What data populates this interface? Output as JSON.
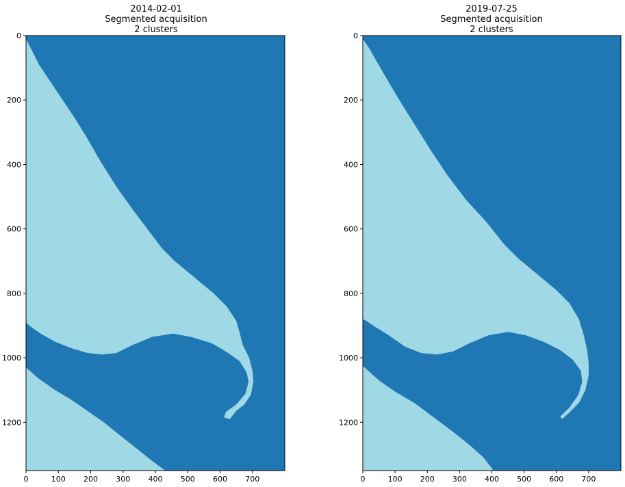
{
  "colors": {
    "cluster_0": "#1f77b4",
    "cluster_1": "#9fd9e6",
    "axis": "#000000",
    "background": "#ffffff"
  },
  "chart_data": [
    {
      "type": "heatmap",
      "title_lines": [
        "2014-02-01",
        "Segmented acquisition",
        "2 clusters"
      ],
      "xlim": [
        0,
        800
      ],
      "ylim": [
        1350,
        0
      ],
      "x_ticks": [
        0,
        100,
        200,
        300,
        400,
        500,
        600,
        700
      ],
      "y_ticks": [
        0,
        200,
        400,
        600,
        800,
        1000,
        1200
      ],
      "legend": "none",
      "grid": false,
      "clusters": 2,
      "regions": [
        {
          "cluster": 1,
          "shape": "upper-left land",
          "outline": [
            [
              0,
              10
            ],
            [
              15,
              40
            ],
            [
              40,
              90
            ],
            [
              90,
              165
            ],
            [
              150,
              255
            ],
            [
              190,
              320
            ],
            [
              230,
              390
            ],
            [
              280,
              470
            ],
            [
              330,
              540
            ],
            [
              390,
              620
            ],
            [
              420,
              660
            ],
            [
              460,
              700
            ],
            [
              520,
              750
            ],
            [
              580,
              800
            ],
            [
              620,
              840
            ],
            [
              650,
              885
            ],
            [
              660,
              920
            ],
            [
              670,
              960
            ],
            [
              690,
              1000
            ],
            [
              700,
              1040
            ],
            [
              703,
              1075
            ],
            [
              695,
              1115
            ],
            [
              675,
              1145
            ],
            [
              650,
              1165
            ],
            [
              630,
              1190
            ],
            [
              612,
              1185
            ],
            [
              618,
              1168
            ],
            [
              650,
              1145
            ],
            [
              678,
              1112
            ],
            [
              688,
              1075
            ],
            [
              682,
              1045
            ],
            [
              660,
              1010
            ],
            [
              625,
              985
            ],
            [
              575,
              955
            ],
            [
              510,
              935
            ],
            [
              455,
              925
            ],
            [
              390,
              935
            ],
            [
              330,
              960
            ],
            [
              280,
              985
            ],
            [
              235,
              990
            ],
            [
              190,
              985
            ],
            [
              140,
              970
            ],
            [
              90,
              950
            ],
            [
              45,
              925
            ],
            [
              10,
              900
            ],
            [
              0,
              890
            ]
          ]
        },
        {
          "cluster": 1,
          "shape": "lower-left land",
          "outline": [
            [
              0,
              1030
            ],
            [
              40,
              1065
            ],
            [
              90,
              1100
            ],
            [
              140,
              1130
            ],
            [
              190,
              1165
            ],
            [
              240,
              1200
            ],
            [
              290,
              1240
            ],
            [
              340,
              1280
            ],
            [
              390,
              1320
            ],
            [
              430,
              1350
            ],
            [
              0,
              1350
            ]
          ]
        }
      ]
    },
    {
      "type": "heatmap",
      "title_lines": [
        "2019-07-25",
        "Segmented acquisition",
        "2 clusters"
      ],
      "xlim": [
        0,
        800
      ],
      "ylim": [
        1350,
        0
      ],
      "x_ticks": [
        0,
        100,
        200,
        300,
        400,
        500,
        600,
        700
      ],
      "y_ticks": [
        0,
        200,
        400,
        600,
        800,
        1000,
        1200
      ],
      "legend": "none",
      "grid": false,
      "clusters": 2,
      "regions": [
        {
          "cluster": 1,
          "shape": "upper-left land",
          "outline": [
            [
              0,
              10
            ],
            [
              20,
              40
            ],
            [
              60,
              110
            ],
            [
              110,
              195
            ],
            [
              160,
              275
            ],
            [
              210,
              355
            ],
            [
              260,
              430
            ],
            [
              320,
              510
            ],
            [
              380,
              575
            ],
            [
              440,
              650
            ],
            [
              480,
              690
            ],
            [
              540,
              740
            ],
            [
              600,
              790
            ],
            [
              640,
              830
            ],
            [
              670,
              880
            ],
            [
              685,
              930
            ],
            [
              695,
              975
            ],
            [
              700,
              1015
            ],
            [
              700,
              1055
            ],
            [
              690,
              1100
            ],
            [
              670,
              1140
            ],
            [
              640,
              1170
            ],
            [
              618,
              1190
            ],
            [
              612,
              1182
            ],
            [
              640,
              1155
            ],
            [
              668,
              1115
            ],
            [
              680,
              1075
            ],
            [
              676,
              1040
            ],
            [
              650,
              1005
            ],
            [
              610,
              975
            ],
            [
              560,
              950
            ],
            [
              505,
              930
            ],
            [
              450,
              920
            ],
            [
              390,
              930
            ],
            [
              330,
              955
            ],
            [
              280,
              980
            ],
            [
              230,
              990
            ],
            [
              180,
              985
            ],
            [
              130,
              965
            ],
            [
              80,
              930
            ],
            [
              40,
              905
            ],
            [
              10,
              885
            ],
            [
              0,
              880
            ]
          ]
        },
        {
          "cluster": 1,
          "shape": "lower-left land",
          "outline": [
            [
              0,
              1025
            ],
            [
              50,
              1070
            ],
            [
              100,
              1105
            ],
            [
              160,
              1140
            ],
            [
              220,
              1185
            ],
            [
              280,
              1230
            ],
            [
              330,
              1270
            ],
            [
              375,
              1310
            ],
            [
              405,
              1350
            ],
            [
              0,
              1350
            ]
          ]
        }
      ]
    }
  ]
}
